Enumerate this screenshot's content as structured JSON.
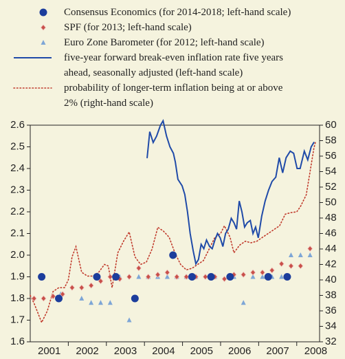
{
  "chart_data": {
    "type": "combo",
    "xlim": [
      2001,
      2008.6
    ],
    "xticks": [
      {
        "value": 2001.5,
        "label": "2001"
      },
      {
        "value": 2002.5,
        "label": "2002"
      },
      {
        "value": 2003.5,
        "label": "2003"
      },
      {
        "value": 2004.5,
        "label": "2004"
      },
      {
        "value": 2005.5,
        "label": "2005"
      },
      {
        "value": 2006.5,
        "label": "2006"
      },
      {
        "value": 2007.5,
        "label": "2007"
      },
      {
        "value": 2008.5,
        "label": "2008"
      }
    ],
    "ylim": [
      1.6,
      2.6
    ],
    "yticks": [
      1.6,
      1.7,
      1.8,
      1.9,
      {
        "value": 2.0,
        "label": "2.0"
      },
      2.1,
      2.2,
      2.3,
      2.4,
      2.5,
      2.6
    ],
    "y2lim": [
      32,
      60
    ],
    "y2ticks": [
      32,
      34,
      36,
      38,
      40,
      42,
      44,
      46,
      48,
      50,
      52,
      54,
      56,
      58,
      60
    ],
    "series": [
      {
        "name": "Consensus Economics (for 2014-2018; left-hand scale)",
        "kind": "circle",
        "color": "#1c3d9c",
        "x": [
          2001.3,
          2001.75,
          2002.75,
          2003.25,
          2003.75,
          2004.75,
          2005.25,
          2005.75,
          2006.25,
          2007.25,
          2007.75
        ],
        "values": [
          1.9,
          1.8,
          1.9,
          1.9,
          1.8,
          2.0,
          1.9,
          1.9,
          1.9,
          1.9,
          1.9
        ]
      },
      {
        "name": "SPF (for 2013; left-hand scale)",
        "kind": "diamond",
        "color": "#c8504a",
        "x": [
          2001.1,
          2001.35,
          2001.6,
          2001.85,
          2002.1,
          2002.35,
          2002.6,
          2002.85,
          2003.1,
          2003.35,
          2003.6,
          2003.85,
          2004.1,
          2004.35,
          2004.6,
          2004.85,
          2005.1,
          2005.35,
          2005.6,
          2005.85,
          2006.1,
          2006.35,
          2006.6,
          2006.85,
          2007.1,
          2007.35,
          2007.6,
          2007.85,
          2008.1,
          2008.35
        ],
        "values": [
          1.8,
          1.8,
          1.81,
          1.82,
          1.85,
          1.85,
          1.86,
          1.88,
          1.9,
          1.89,
          1.9,
          1.94,
          1.9,
          1.91,
          1.92,
          1.9,
          1.9,
          1.9,
          1.9,
          1.9,
          1.89,
          1.91,
          1.91,
          1.92,
          1.92,
          1.93,
          1.96,
          1.95,
          1.95,
          2.03
        ]
      },
      {
        "name": "Euro Zone Barometer (for 2012; left-hand scale)",
        "kind": "triangle",
        "color": "#7ea6d6",
        "x": [
          2001.8,
          2002.35,
          2002.6,
          2002.85,
          2003.1,
          2003.35,
          2003.6,
          2003.85,
          2004.1,
          2004.35,
          2004.6,
          2004.85,
          2005.1,
          2005.35,
          2005.85,
          2006.35,
          2006.6,
          2006.85,
          2007.1,
          2007.35,
          2007.6,
          2007.85,
          2008.1,
          2008.35
        ],
        "values": [
          1.82,
          1.8,
          1.78,
          1.78,
          1.78,
          1.9,
          1.7,
          1.9,
          1.9,
          1.9,
          1.9,
          1.9,
          1.9,
          1.9,
          1.9,
          1.9,
          1.78,
          1.9,
          1.9,
          1.9,
          1.9,
          2.0,
          2.0,
          2.0
        ]
      },
      {
        "name": "five-year forward break-even inflation rate five years ahead, seasonally adjusted (left-hand scale)",
        "kind": "line",
        "color": "#1f4aa8",
        "x": [
          2004.07,
          2004.14,
          2004.23,
          2004.32,
          2004.42,
          2004.49,
          2004.58,
          2004.67,
          2004.76,
          2004.81,
          2004.88,
          2004.99,
          2005.06,
          2005.13,
          2005.2,
          2005.28,
          2005.35,
          2005.42,
          2005.49,
          2005.56,
          2005.63,
          2005.71,
          2005.78,
          2005.85,
          2005.92,
          2005.99,
          2006.06,
          2006.13,
          2006.2,
          2006.28,
          2006.35,
          2006.42,
          2006.49,
          2006.56,
          2006.63,
          2006.7,
          2006.78,
          2006.85,
          2006.92,
          2006.99,
          2007.08,
          2007.17,
          2007.26,
          2007.35,
          2007.45,
          2007.54,
          2007.63,
          2007.72,
          2007.83,
          2007.92,
          2008.01,
          2008.09,
          2008.2,
          2008.29,
          2008.38,
          2008.45
        ],
        "values": [
          2.45,
          2.57,
          2.52,
          2.55,
          2.6,
          2.62,
          2.55,
          2.5,
          2.47,
          2.43,
          2.35,
          2.32,
          2.28,
          2.2,
          2.1,
          2.02,
          1.96,
          1.98,
          2.05,
          2.03,
          2.07,
          2.04,
          2.03,
          2.07,
          2.1,
          2.08,
          2.04,
          2.1,
          2.12,
          2.17,
          2.15,
          2.12,
          2.25,
          2.2,
          2.13,
          2.15,
          2.16,
          2.1,
          2.13,
          2.08,
          2.18,
          2.25,
          2.3,
          2.34,
          2.36,
          2.45,
          2.38,
          2.45,
          2.48,
          2.47,
          2.4,
          2.4,
          2.48,
          2.44,
          2.5,
          2.52
        ]
      },
      {
        "name": "probability of longer-term inflation being at or above 2% (right-hand scale)",
        "kind": "dotted",
        "color": "#c0392b",
        "axis": "y2",
        "x": [
          2001.0,
          2001.1,
          2001.3,
          2001.45,
          2001.6,
          2001.75,
          2001.9,
          2002.0,
          2002.1,
          2002.2,
          2002.35,
          2002.5,
          2002.65,
          2002.8,
          2002.95,
          2003.05,
          2003.15,
          2003.3,
          2003.45,
          2003.6,
          2003.75,
          2003.9,
          2004.05,
          2004.2,
          2004.35,
          2004.5,
          2004.65,
          2004.8,
          2004.95,
          2005.1,
          2005.25,
          2005.4,
          2005.55,
          2005.7,
          2005.85,
          2006.0,
          2006.1,
          2006.25,
          2006.35,
          2006.5,
          2006.65,
          2006.8,
          2006.95,
          2007.1,
          2007.25,
          2007.4,
          2007.55,
          2007.7,
          2007.85,
          2008.0,
          2008.1,
          2008.25,
          2008.35,
          2008.45,
          2008.5
        ],
        "values": [
          38,
          37,
          34.5,
          36,
          38.5,
          39,
          39,
          40,
          43,
          44.3,
          41,
          40.5,
          40.5,
          41,
          42,
          41.8,
          39,
          43.5,
          45,
          46.2,
          43,
          42,
          42.3,
          44,
          46.8,
          46.3,
          45.5,
          43.5,
          42,
          41.3,
          41.5,
          42,
          42.5,
          44,
          45.5,
          46,
          47,
          45.5,
          43.5,
          44.5,
          45,
          44.8,
          45,
          45.5,
          46,
          46.5,
          47,
          48.5,
          48.7,
          48.8,
          49.5,
          51,
          54,
          57,
          58
        ]
      }
    ]
  }
}
